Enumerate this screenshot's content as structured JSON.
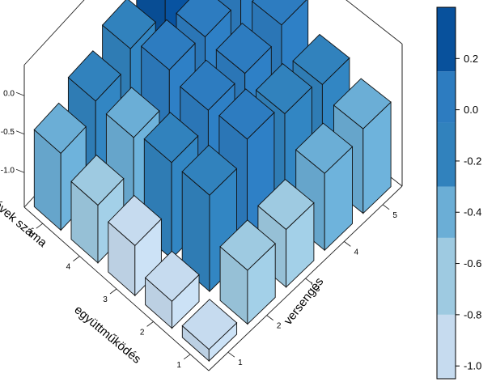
{
  "chart_data": {
    "type": "bar3d",
    "x_axis": {
      "title": "együttműködés",
      "categories": [
        "1",
        "2",
        "3",
        "4",
        "5"
      ]
    },
    "y_axis": {
      "title": "versengés",
      "categories": [
        "1",
        "2",
        "3",
        "4",
        "5"
      ]
    },
    "z_axis": {
      "title": "évek száma",
      "ticks": [
        "0.0",
        "-0.5",
        "-1.0"
      ],
      "ticks_values": [
        0.0,
        -0.5,
        -1.0
      ],
      "range": [
        -1.45,
        0.4
      ]
    },
    "colorbar": {
      "tick_labels": [
        "0.2",
        "0.0",
        "-0.2",
        "-0.4",
        "-0.6",
        "-0.8",
        "-1.0"
      ],
      "tick_values": [
        0.2,
        0.0,
        -0.2,
        -0.4,
        -0.6,
        -0.8,
        -1.0
      ],
      "range": [
        -1.05,
        0.4
      ],
      "breaks": [
        -1.05,
        -0.8,
        -0.5,
        -0.3,
        -0.05,
        0.15,
        0.4
      ],
      "colors": [
        "#c6dbef",
        "#9ecae1",
        "#6baed6",
        "#3182bd",
        "#2d7cc0",
        "#08519c"
      ]
    },
    "grid_z": [
      [
        -1.3,
        -0.75,
        -0.7,
        -0.45,
        -0.35
      ],
      [
        -1.1,
        -0.2,
        0.05,
        -0.1,
        -0.2
      ],
      [
        -0.8,
        -0.2,
        0.0,
        0.0,
        0.15
      ],
      [
        -0.7,
        -0.3,
        0.1,
        0.05,
        0.05
      ],
      [
        -0.45,
        -0.25,
        -0.05,
        0.2,
        0.15
      ]
    ],
    "grid_note": "grid_z[x_index][y_index] = value for együttműködés (x) and versengés (y)",
    "grid": false,
    "legend": "right"
  }
}
